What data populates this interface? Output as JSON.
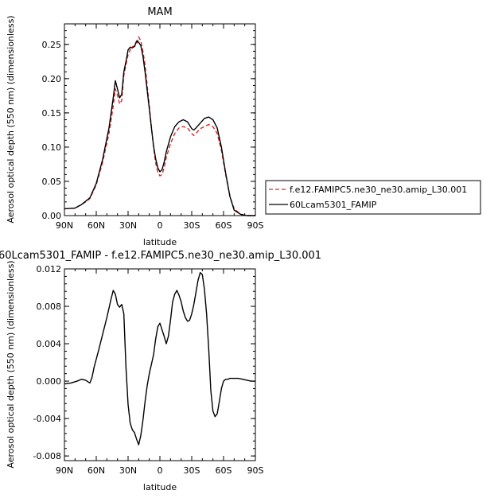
{
  "chart_data": [
    {
      "type": "line",
      "title": "MAM",
      "xlabel": "latitude",
      "ylabel": "Aerosol optical depth (550 nm) (dimensionless)",
      "xlim": [
        90,
        -90
      ],
      "ylim": [
        0.0,
        0.28
      ],
      "x_ticks": [
        90,
        60,
        30,
        0,
        -30,
        -60,
        -90
      ],
      "x_tick_labels": [
        "90N",
        "60N",
        "30N",
        "0",
        "30S",
        "60S",
        "90S"
      ],
      "y_ticks": [
        0.0,
        0.05,
        0.1,
        0.15,
        0.2,
        0.25
      ],
      "y_tick_labels": [
        "0.00",
        "0.05",
        "0.10",
        "0.15",
        "0.20",
        "0.25"
      ],
      "legend_position": "right",
      "series": [
        {
          "name": "f.e12.FAMIPC5.ne30_ne30.amip_L30.001",
          "color": "#d62728",
          "style": "dashed",
          "x": [
            90,
            80,
            74,
            70,
            66,
            60,
            54,
            48,
            44,
            42,
            40,
            38,
            36,
            34,
            32,
            30,
            28,
            26,
            24,
            22,
            20,
            18,
            16,
            14,
            12,
            10,
            8,
            6,
            4,
            2,
            0,
            -2,
            -4,
            -6,
            -10,
            -14,
            -18,
            -22,
            -26,
            -30,
            -32,
            -34,
            -38,
            -42,
            -46,
            -50,
            -54,
            -58,
            -62,
            -66,
            -70,
            -76,
            -82,
            -90
          ],
          "y": [
            0.01,
            0.011,
            0.016,
            0.02,
            0.025,
            0.045,
            0.078,
            0.12,
            0.16,
            0.185,
            0.176,
            0.163,
            0.168,
            0.205,
            0.22,
            0.235,
            0.242,
            0.247,
            0.247,
            0.25,
            0.261,
            0.255,
            0.24,
            0.22,
            0.19,
            0.16,
            0.13,
            0.1,
            0.077,
            0.063,
            0.058,
            0.06,
            0.07,
            0.085,
            0.105,
            0.12,
            0.128,
            0.13,
            0.128,
            0.12,
            0.117,
            0.12,
            0.127,
            0.13,
            0.133,
            0.13,
            0.12,
            0.095,
            0.06,
            0.028,
            0.01,
            0.002,
            0.0,
            0.0
          ]
        },
        {
          "name": "60Lcam5301_FAMIP",
          "color": "#000000",
          "style": "solid",
          "x": [
            90,
            80,
            74,
            70,
            66,
            60,
            54,
            48,
            44,
            42,
            40,
            38,
            36,
            34,
            32,
            30,
            28,
            26,
            24,
            22,
            20,
            18,
            16,
            14,
            12,
            10,
            8,
            6,
            4,
            2,
            0,
            -2,
            -4,
            -6,
            -10,
            -14,
            -18,
            -22,
            -26,
            -30,
            -32,
            -34,
            -38,
            -42,
            -46,
            -50,
            -54,
            -58,
            -62,
            -66,
            -70,
            -76,
            -82,
            -90
          ],
          "y": [
            0.01,
            0.011,
            0.016,
            0.021,
            0.026,
            0.047,
            0.082,
            0.128,
            0.172,
            0.197,
            0.185,
            0.172,
            0.177,
            0.21,
            0.225,
            0.242,
            0.246,
            0.245,
            0.247,
            0.255,
            0.253,
            0.248,
            0.233,
            0.21,
            0.183,
            0.156,
            0.128,
            0.102,
            0.083,
            0.07,
            0.064,
            0.067,
            0.078,
            0.093,
            0.115,
            0.13,
            0.137,
            0.14,
            0.137,
            0.127,
            0.125,
            0.128,
            0.135,
            0.142,
            0.144,
            0.14,
            0.128,
            0.1,
            0.062,
            0.028,
            0.008,
            0.002,
            0.0,
            0.0
          ]
        }
      ]
    },
    {
      "type": "line",
      "title": "60Lcam5301_FAMIP - f.e12.FAMIPC5.ne30_ne30.amip_L30.001",
      "xlabel": "latitude",
      "ylabel": "Aerosol optical depth (550 nm) (dimensionless)",
      "xlim": [
        90,
        -90
      ],
      "ylim": [
        -0.0085,
        0.012
      ],
      "x_ticks": [
        90,
        60,
        30,
        0,
        -30,
        -60,
        -90
      ],
      "x_tick_labels": [
        "90N",
        "60N",
        "30N",
        "0",
        "30S",
        "60S",
        "90S"
      ],
      "y_ticks": [
        -0.008,
        -0.004,
        0.0,
        0.004,
        0.008,
        0.012
      ],
      "y_tick_labels": [
        "-0.008",
        "-0.004",
        "0.000",
        "0.004",
        "0.008",
        "0.012"
      ],
      "series": [
        {
          "color": "#000000",
          "style": "solid",
          "x": [
            90,
            84,
            78,
            74,
            70,
            66,
            64,
            62,
            58,
            54,
            50,
            46,
            44,
            42,
            40,
            38,
            36,
            34,
            32,
            30,
            28,
            26,
            24,
            22,
            20,
            18,
            16,
            14,
            12,
            10,
            8,
            6,
            4,
            2,
            0,
            -2,
            -4,
            -6,
            -8,
            -10,
            -12,
            -14,
            -16,
            -18,
            -20,
            -22,
            -24,
            -26,
            -28,
            -30,
            -32,
            -34,
            -36,
            -38,
            -40,
            -42,
            -44,
            -46,
            -48,
            -50,
            -52,
            -54,
            -56,
            -58,
            -60,
            -62,
            -64,
            -66,
            -68,
            -70,
            -74,
            -78,
            -82,
            -86,
            -90
          ],
          "y": [
            -0.0003,
            -0.0002,
            0.0,
            0.0002,
            0.0001,
            -0.0002,
            0.0004,
            0.0015,
            0.0032,
            0.005,
            0.0068,
            0.0088,
            0.0097,
            0.0093,
            0.0082,
            0.0079,
            0.0082,
            0.0072,
            0.0015,
            -0.0025,
            -0.0045,
            -0.0052,
            -0.0055,
            -0.0062,
            -0.0068,
            -0.0058,
            -0.0042,
            -0.0022,
            -0.0005,
            0.0008,
            0.0018,
            0.0028,
            0.0045,
            0.0058,
            0.0062,
            0.0055,
            0.0048,
            0.004,
            0.0048,
            0.0065,
            0.0085,
            0.0093,
            0.0097,
            0.0092,
            0.0085,
            0.0075,
            0.0068,
            0.0064,
            0.0065,
            0.0072,
            0.0082,
            0.0095,
            0.0108,
            0.0116,
            0.0114,
            0.0098,
            0.0072,
            0.0035,
            -0.001,
            -0.0032,
            -0.0038,
            -0.0035,
            -0.0022,
            -0.0008,
            0.0,
            0.0002,
            0.0002,
            0.0003,
            0.0003,
            0.0003,
            0.0003,
            0.0002,
            0.0001,
            0.0,
            0.0
          ]
        }
      ]
    }
  ]
}
